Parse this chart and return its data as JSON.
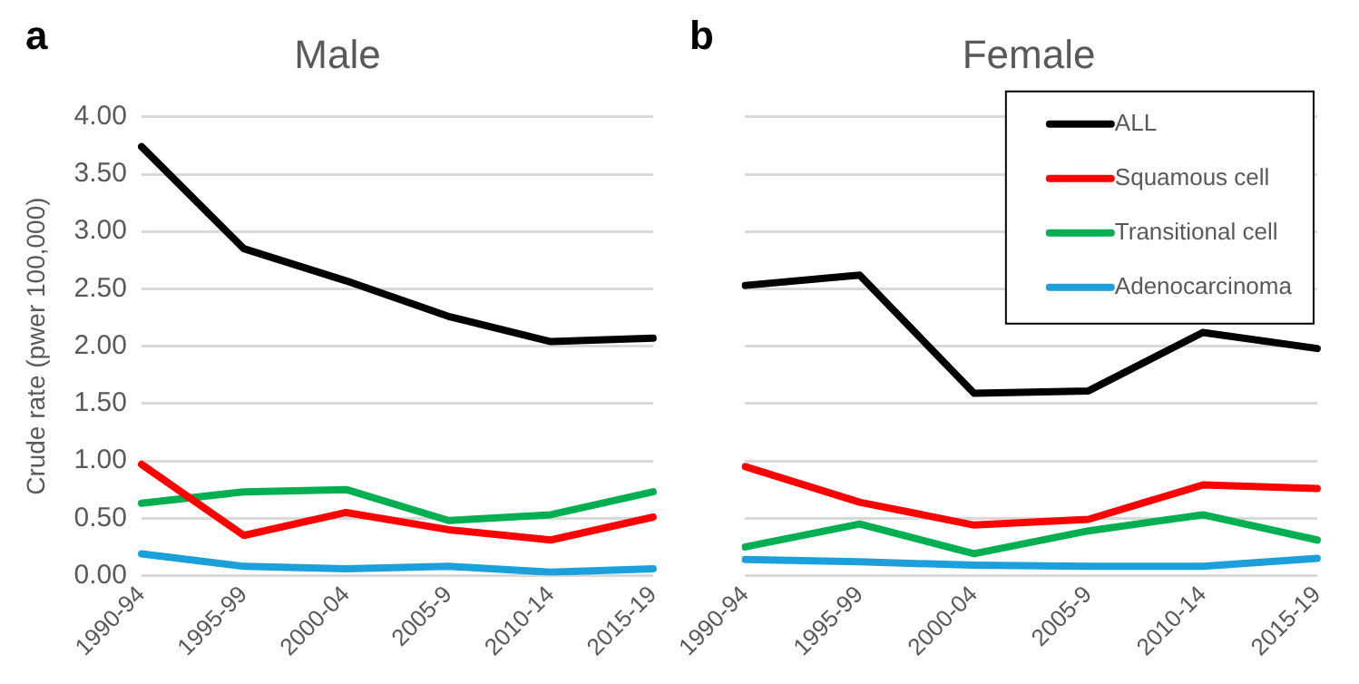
{
  "chart_data": [
    {
      "type": "line",
      "title": "Male",
      "annotations": [
        "a"
      ],
      "ylabel": "Crude rate (pwer 100,000)",
      "categories": [
        "1990-94",
        "1995-99",
        "2000-04",
        "2005-9",
        "2010-14",
        "2015-19"
      ],
      "series": [
        {
          "color": "#000000",
          "values": [
            3.74,
            2.85,
            2.57,
            2.26,
            2.04,
            2.07
          ]
        },
        {
          "color": "#ff0000",
          "values": [
            0.97,
            0.35,
            0.55,
            0.4,
            0.31,
            0.51
          ]
        },
        {
          "color": "#00b050",
          "values": [
            0.63,
            0.73,
            0.75,
            0.48,
            0.53,
            0.73
          ]
        },
        {
          "color": "#1ca0dc",
          "values": [
            0.19,
            0.08,
            0.06,
            0.08,
            0.03,
            0.06
          ]
        }
      ],
      "ylim": [
        0,
        4
      ],
      "yticks": [
        {
          "value": 0,
          "label": "0.00"
        },
        {
          "value": 0.5,
          "label": "0.50"
        },
        {
          "value": 1,
          "label": "1.00"
        },
        {
          "value": 1.5,
          "label": "1.50"
        },
        {
          "value": 2,
          "label": "2.00"
        },
        {
          "value": 2.5,
          "label": "2.50"
        },
        {
          "value": 3,
          "label": "3.00"
        },
        {
          "value": 3.5,
          "label": "3.50"
        },
        {
          "value": 4,
          "label": "4.00"
        }
      ],
      "grid": "y",
      "marker": "none",
      "line_style": "solid"
    },
    {
      "type": "line",
      "title": "Female",
      "annotations": [
        "b"
      ],
      "categories": [
        "1990-94",
        "1995-99",
        "2000-04",
        "2005-9",
        "2010-14",
        "2015-19"
      ],
      "series": [
        {
          "name": "ALL",
          "color": "#000000",
          "values": [
            2.53,
            2.62,
            1.59,
            1.61,
            2.12,
            1.98
          ]
        },
        {
          "name": "Squamous cell",
          "color": "#ff0000",
          "values": [
            0.95,
            0.64,
            0.44,
            0.49,
            0.79,
            0.76
          ]
        },
        {
          "name": "Transitional cell",
          "color": "#00b050",
          "values": [
            0.25,
            0.45,
            0.19,
            0.39,
            0.53,
            0.31
          ]
        },
        {
          "name": "Adenocarcinoma",
          "color": "#1ca0dc",
          "values": [
            0.14,
            0.12,
            0.09,
            0.08,
            0.08,
            0.15
          ]
        }
      ],
      "ylim": [
        0,
        4
      ],
      "yticks": [
        {
          "value": 0,
          "label": null
        },
        {
          "value": 0.5,
          "label": null
        },
        {
          "value": 1,
          "label": null
        },
        {
          "value": 1.5,
          "label": null
        },
        {
          "value": 2,
          "label": null
        },
        {
          "value": 2.5,
          "label": null
        },
        {
          "value": 3,
          "label": null
        },
        {
          "value": 3.5,
          "label": null
        },
        {
          "value": 4,
          "label": null
        }
      ],
      "tick_labels": "x",
      "grid": "y",
      "legend": "top right",
      "marker": "none",
      "line_style": "solid"
    }
  ]
}
